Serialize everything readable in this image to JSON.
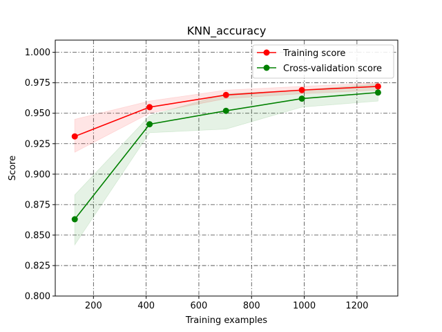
{
  "chart_data": {
    "type": "line",
    "title": "KNN_accuracy",
    "xlabel": "Training examples",
    "ylabel": "Score",
    "x": [
      129,
      413,
      703,
      991,
      1280
    ],
    "xlim": [
      55,
      1355
    ],
    "ylim": [
      0.8,
      1.01
    ],
    "xticks": [
      200,
      400,
      600,
      800,
      1000,
      1200
    ],
    "yticks": [
      0.8,
      0.825,
      0.85,
      0.875,
      0.9,
      0.925,
      0.95,
      0.975,
      1.0
    ],
    "xtick_labels": [
      "200",
      "400",
      "600",
      "800",
      "1000",
      "1200"
    ],
    "ytick_labels": [
      "0.800",
      "0.825",
      "0.850",
      "0.875",
      "0.900",
      "0.925",
      "0.950",
      "0.975",
      "1.000"
    ],
    "grid": true,
    "legend_position": "top-right",
    "series": [
      {
        "name": "Training score",
        "color": "#ff0000",
        "values": [
          0.931,
          0.955,
          0.965,
          0.969,
          0.972
        ],
        "band_lower": [
          0.918,
          0.95,
          0.962,
          0.966,
          0.969
        ],
        "band_upper": [
          0.945,
          0.96,
          0.969,
          0.972,
          0.975
        ]
      },
      {
        "name": "Cross-validation score",
        "color": "#008000",
        "values": [
          0.863,
          0.941,
          0.952,
          0.962,
          0.967
        ],
        "band_lower": [
          0.842,
          0.934,
          0.937,
          0.955,
          0.96
        ],
        "band_upper": [
          0.883,
          0.948,
          0.966,
          0.969,
          0.974
        ]
      }
    ]
  }
}
